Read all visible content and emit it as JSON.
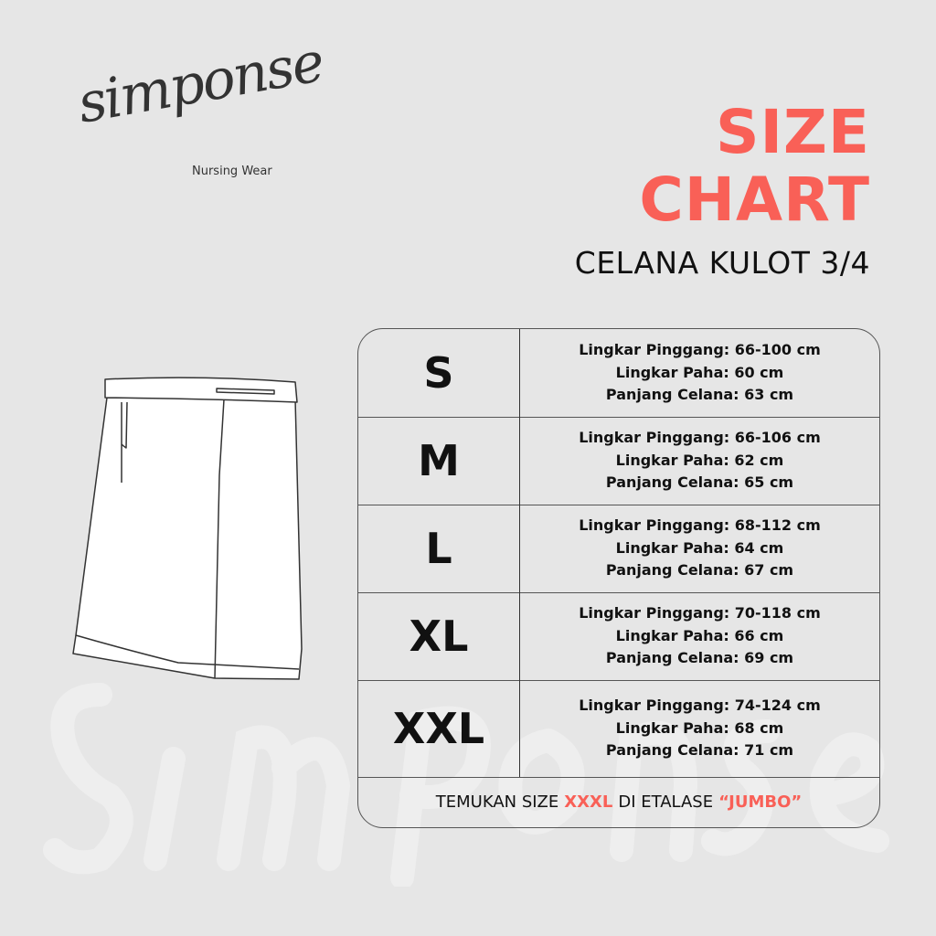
{
  "brand": {
    "name": "simponse",
    "tagline": "Nursing Wear"
  },
  "header": {
    "title_line1": "SIZE",
    "title_line2": "CHART",
    "product": "CELANA KULOT 3/4"
  },
  "accent_color": "#f96057",
  "sizes": [
    {
      "size": "S",
      "lines": [
        "Lingkar Pinggang: 66-100 cm",
        "Lingkar Paha: 60 cm",
        "Panjang Celana: 63 cm"
      ]
    },
    {
      "size": "M",
      "lines": [
        "Lingkar Pinggang: 66-106 cm",
        "Lingkar Paha: 62 cm",
        "Panjang Celana: 65 cm"
      ]
    },
    {
      "size": "L",
      "lines": [
        "Lingkar Pinggang: 68-112 cm",
        "Lingkar Paha: 64 cm",
        "Panjang Celana: 67 cm"
      ]
    },
    {
      "size": "XL",
      "lines": [
        "Lingkar Pinggang: 70-118 cm",
        "Lingkar Paha: 66 cm",
        "Panjang Celana: 69 cm"
      ]
    },
    {
      "size": "XXL",
      "lines": [
        "Lingkar Pinggang: 74-124 cm",
        "Lingkar Paha: 68 cm",
        "Panjang Celana: 71 cm"
      ]
    }
  ],
  "footer": {
    "part1": "TEMUKAN SIZE",
    "highlight1": "XXXL",
    "part2": "DI ETALASE",
    "highlight2": "“JUMBO”"
  }
}
